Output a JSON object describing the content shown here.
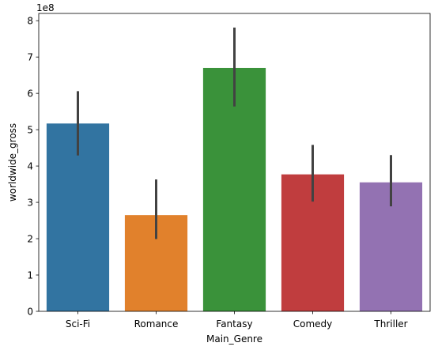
{
  "chart_data": {
    "type": "bar",
    "title": "",
    "xlabel": "Main_Genre",
    "ylabel": "worldwide_gross",
    "y_offset_label": "1e8",
    "y_scale": 100000000,
    "ylim": [
      0,
      820000000
    ],
    "yticks": [
      0,
      100000000,
      200000000,
      300000000,
      400000000,
      500000000,
      600000000,
      700000000,
      800000000
    ],
    "ytick_labels": [
      "0",
      "1",
      "2",
      "3",
      "4",
      "5",
      "6",
      "7",
      "8"
    ],
    "grid": false,
    "legend": "none",
    "categories": [
      "Sci-Fi",
      "Romance",
      "Fantasy",
      "Comedy",
      "Thriller"
    ],
    "values": [
      517000000,
      265000000,
      670000000,
      377000000,
      355000000
    ],
    "error_low": [
      429000000,
      199000000,
      564000000,
      302000000,
      289000000
    ],
    "error_high": [
      606000000,
      363000000,
      781000000,
      458000000,
      430000000
    ],
    "colors": [
      "#3274a1",
      "#e1812c",
      "#3a923a",
      "#c03d3e",
      "#9372b2"
    ],
    "error_color": "#424242"
  }
}
